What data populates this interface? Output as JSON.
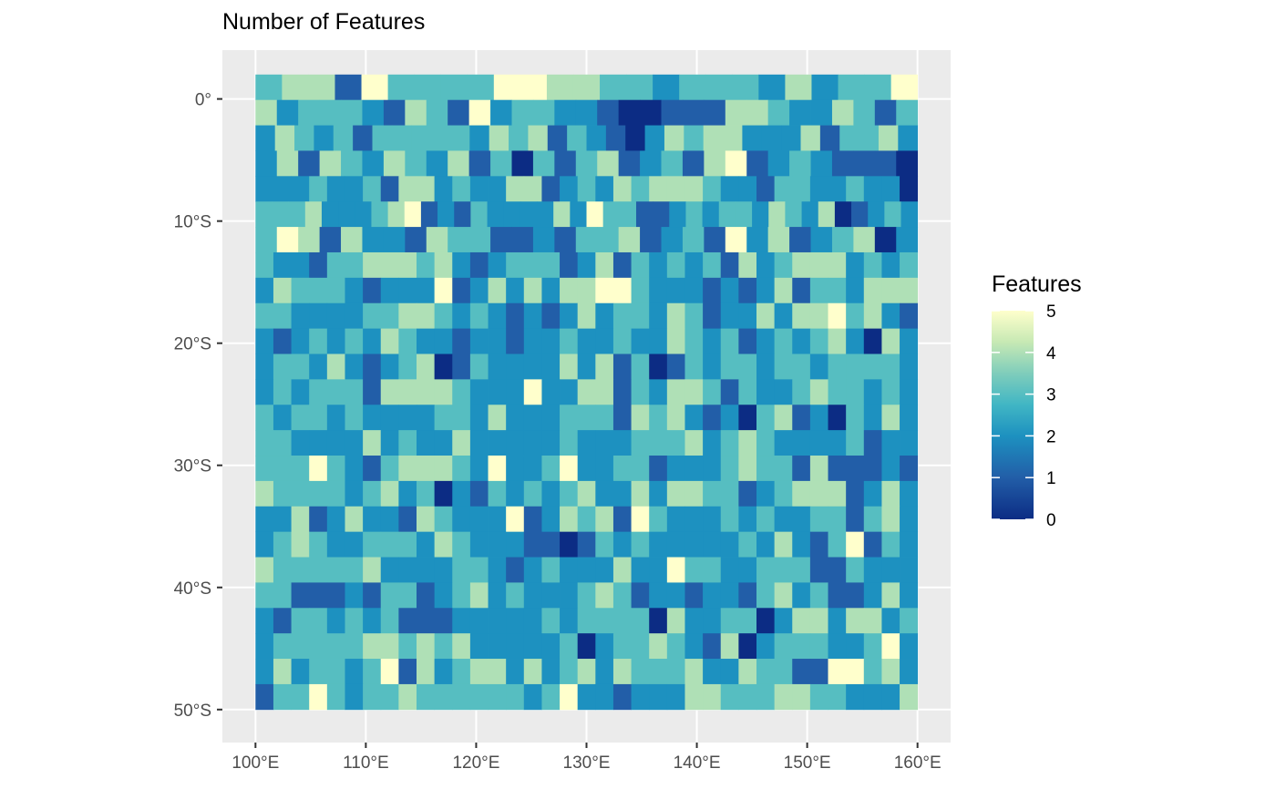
{
  "chart_data": {
    "type": "heatmap",
    "title": "Number of Features",
    "x_tick_labels": [
      "100°E",
      "110°E",
      "120°E",
      "130°E",
      "140°E",
      "150°E",
      "160°E"
    ],
    "x_ticks": [
      100,
      110,
      120,
      130,
      140,
      150,
      160
    ],
    "y_tick_labels": [
      "0°",
      "10°S",
      "20°S",
      "30°S",
      "40°S",
      "50°S"
    ],
    "y_ticks": [
      0,
      -10,
      -20,
      -30,
      -40,
      -50
    ],
    "xlim": [
      97,
      163
    ],
    "ylim": [
      -52.7,
      4
    ],
    "x_start": 100,
    "x_end": 160,
    "y_top": 2,
    "y_bottom": -50,
    "legend_title": "Features",
    "legend_ticks": [
      5,
      4,
      3,
      2,
      1,
      0
    ],
    "value_range": [
      0,
      5
    ],
    "colorscale": [
      "#0c2c84",
      "#225ea8",
      "#1d91c0",
      "#41b6c4",
      "#7fcdbb",
      "#c7e9b4",
      "#ffffcc"
    ],
    "panel_background": "#ebebeb",
    "grid_color": "#ffffff",
    "grid": true,
    "legend_position": "right",
    "rows": [
      "3441533335544332333242335",
      "4233321431523322100111443224313",
      "2432313333324341321024344222413342",
      "2414324324130313412314512321110",
      "2223223144232244123243444322133223220",
      "3334222345121322224253311232332432401232",
      "3541422143311213341231524123402",
      "3221334443421233312413232314234442323",
      "2433321222512424244553222121241332444",
      "3322223344323212124233243122424453421",
      "2123232432212212232232243231232342042",
      "2332421234013222242413013233233233332",
      "2323331444432225224413244313223433232",
      "3233232222332422233314342120341203242",
      "3322224232242222232223334234322223122",
      "3335321344432522352233122234331411121",
      "4333323423021323234224244331234441242",
      "2241242214322251243415322232322331342",
      "2343223332432221101323222223242135132",
      "4333334222233212322242253322333113222",
      "3311121331234232223431221221342311242",
      "2133232311122222323333042233024424423",
      "2333334434342222230233432140233322352",
      "2423323514234424234243334224331155342",
      "1335323343333332352212224433344332224"
    ]
  }
}
